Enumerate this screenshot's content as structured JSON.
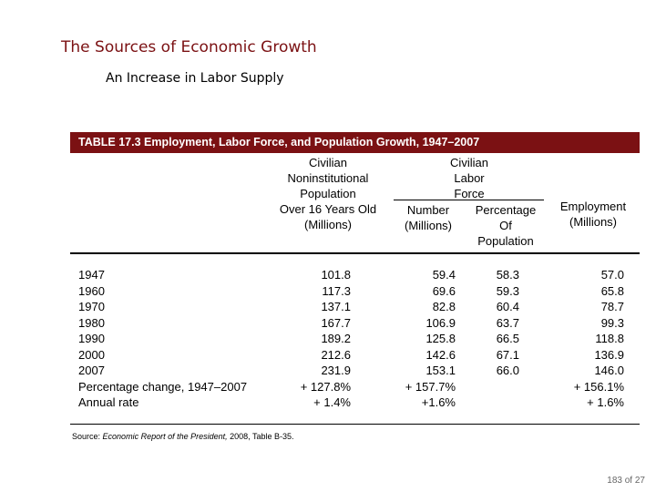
{
  "slide": {
    "title": "The Sources of Economic Growth",
    "subtitle": "An Increase in Labor Supply",
    "page_number": "183 of 27"
  },
  "table": {
    "caption": "TABLE 17.3  Employment, Labor Force, and Population Growth, 1947–2007",
    "headers": {
      "population_lines": [
        "Civilian",
        "Noninstitutional",
        "Population",
        "Over 16 Years Old",
        "(Millions)"
      ],
      "labor_force_lines": [
        "Civilian",
        "Labor",
        "Force"
      ],
      "number_lines": [
        "Number",
        "(Millions)"
      ],
      "percentage_lines": [
        "Percentage",
        "Of",
        "Population"
      ],
      "employment_lines": [
        "Employment",
        "(Millions)"
      ]
    },
    "row_labels": [
      "1947",
      "1960",
      "1970",
      "1980",
      "1990",
      "2000",
      "2007",
      "Percentage change, 1947–2007",
      "Annual rate"
    ],
    "population": [
      "101.8",
      "117.3",
      "137.1",
      "167.7",
      "189.2",
      "212.6",
      "231.9",
      "+ 127.8%",
      "+ 1.4%"
    ],
    "labor_force_number": [
      "59.4",
      "69.6",
      "82.8",
      "106.9",
      "125.8",
      "142.6",
      "153.1",
      "+ 157.7%",
      "+1.6%"
    ],
    "labor_force_percentage": [
      "58.3",
      "59.3",
      "60.4",
      "63.7",
      "66.5",
      "67.1",
      "66.0",
      "",
      ""
    ],
    "employment": [
      "57.0",
      "65.8",
      "78.7",
      "99.3",
      "118.8",
      "136.9",
      "146.0",
      "+ 156.1%",
      "+ 1.6%"
    ],
    "source": {
      "prefix": "Source:",
      "publication": "Economic Report of the President,",
      "suffix": "2008, Table B-35."
    }
  }
}
